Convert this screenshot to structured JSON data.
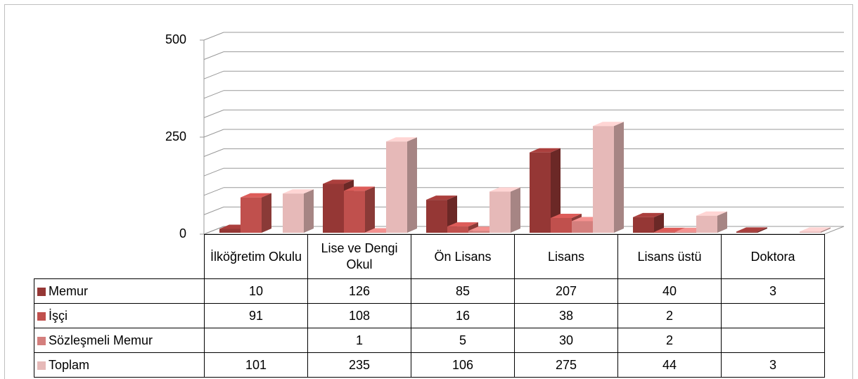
{
  "chart_data": {
    "type": "bar3d",
    "categories": [
      "İlköğretim Okulu",
      "Lise ve Dengi Okul",
      "Ön Lisans",
      "Lisans",
      "Lisans üstü",
      "Doktora"
    ],
    "series": [
      {
        "name": "Memur",
        "color": "#953735",
        "values": [
          10,
          126,
          85,
          207,
          40,
          3
        ]
      },
      {
        "name": "İşçi",
        "color": "#c0504d",
        "values": [
          91,
          108,
          16,
          38,
          2,
          null
        ]
      },
      {
        "name": "Sözleşmeli Memur",
        "color": "#d47f7d",
        "values": [
          null,
          1,
          5,
          30,
          2,
          null
        ]
      },
      {
        "name": "Toplam",
        "color": "#e6b9b8",
        "values": [
          101,
          235,
          106,
          275,
          44,
          3
        ]
      }
    ],
    "ylim": [
      0,
      500
    ],
    "yticks": [
      0,
      250,
      500
    ],
    "minor_yticks": [
      50,
      100,
      150,
      200,
      300,
      350,
      400,
      450
    ],
    "grid": true,
    "legend": "data-table"
  }
}
